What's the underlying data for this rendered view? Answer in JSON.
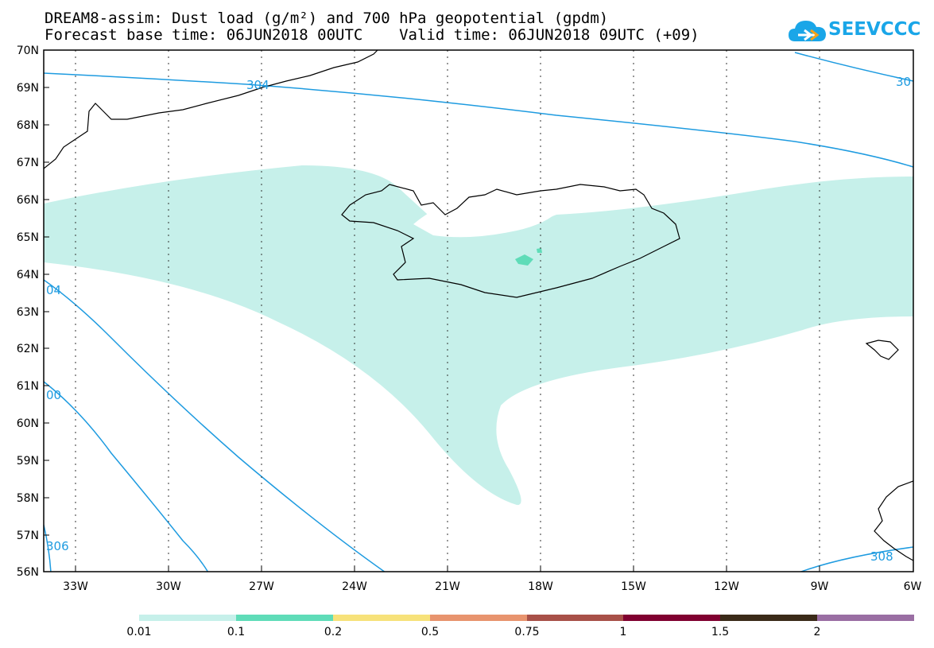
{
  "title": {
    "line1": "DREAM8-assim: Dust load (g/m²) and 700 hPa geopotential (gpdm)",
    "line2": "Forecast base time: 06JUN2018 00UTC    Valid time: 06JUN2018 09UTC (+09)"
  },
  "logo": {
    "text": "SEEVCCC",
    "icon": "cloud-arrow-icon",
    "color": "#1aa6e8"
  },
  "map": {
    "lat_labels": [
      "70N",
      "69N",
      "68N",
      "67N",
      "66N",
      "65N",
      "64N",
      "63N",
      "62N",
      "61N",
      "60N",
      "59N",
      "58N",
      "57N",
      "56N"
    ],
    "lon_labels": [
      "33W",
      "30W",
      "27W",
      "24W",
      "21W",
      "18W",
      "15W",
      "12W",
      "9W",
      "6W"
    ],
    "lat_range": [
      56,
      70
    ],
    "lon_range": [
      -34.3,
      -6
    ],
    "dust_color": "#c6f0ea",
    "dust_core_color": "#5fdcb8",
    "contour_color": "#1e9be0",
    "coastline_color": "#000000",
    "contour_labels": [
      "304",
      "30",
      "04",
      "00",
      "306",
      "308"
    ]
  },
  "colorbar": {
    "colors": [
      "#c6f0ea",
      "#5fdcb8",
      "#f7e27a",
      "#e8946e",
      "#a85048",
      "#800030",
      "#3a2a18",
      "#9a6ea3"
    ],
    "labels": [
      "0.01",
      "0.1",
      "0.2",
      "0.5",
      "0.75",
      "1",
      "1.5",
      "2"
    ]
  }
}
